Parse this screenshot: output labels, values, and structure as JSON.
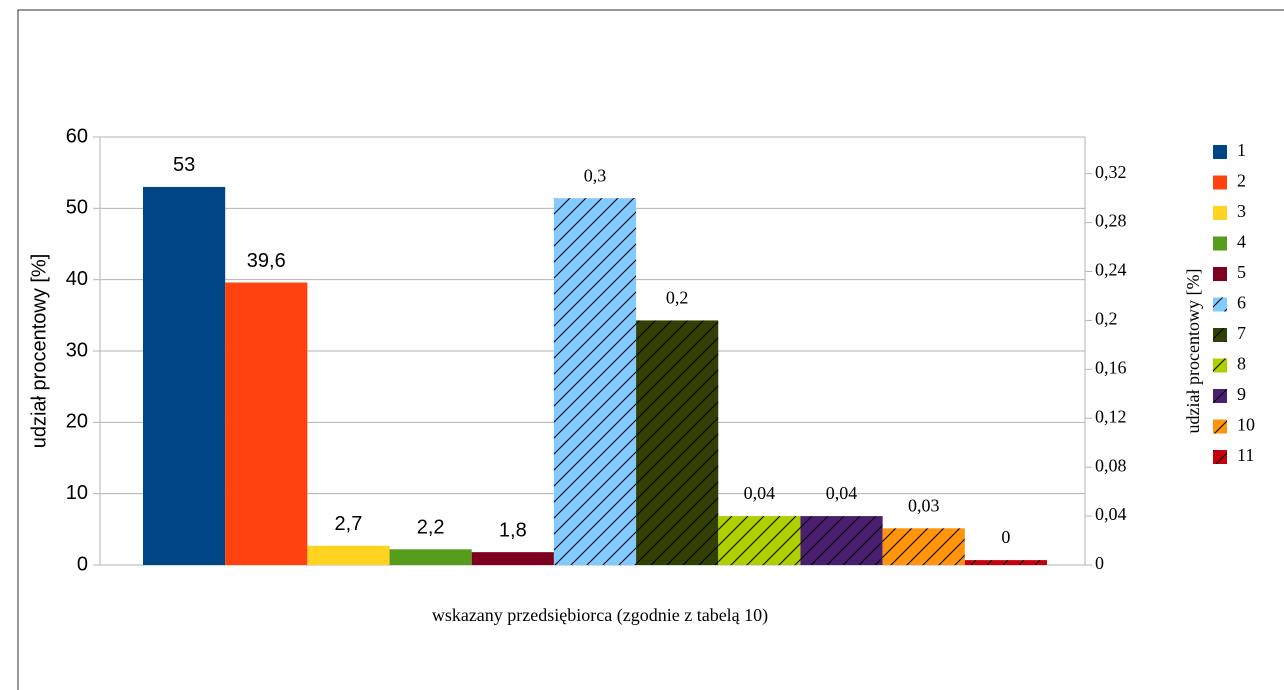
{
  "chart_data": {
    "type": "bar",
    "x_label": "wskazany przedsiębiorca (zgodnie z tabelą 10)",
    "y_label": "udział procentowy [%]",
    "y2_label": "udział procentowy [%]",
    "categories": [
      null
    ],
    "ylim": [
      0,
      60
    ],
    "yticks": [
      0,
      10,
      20,
      30,
      40,
      50,
      60
    ],
    "y2lim": [
      0,
      0.35
    ],
    "y2ticks": [
      0,
      {
        "value": 0.04,
        "label": "0,04"
      },
      {
        "value": 0.08,
        "label": "0,08"
      },
      {
        "value": 0.12,
        "label": "0,12"
      },
      {
        "value": 0.16,
        "label": "0,16"
      },
      {
        "value": 0.2,
        "label": "0,2"
      },
      {
        "value": 0.24,
        "label": "0,24"
      },
      {
        "value": 0.28,
        "label": "0,28"
      },
      {
        "value": 0.32,
        "label": "0,32"
      }
    ],
    "grid": true,
    "legend": "right",
    "series": [
      {
        "name": "1",
        "color": "#004586",
        "values": [
          53
        ]
      },
      {
        "name": "2",
        "color": "#ff420e",
        "values": [
          39.6
        ],
        "value_labels": [
          "39,6"
        ]
      },
      {
        "name": "3",
        "color": "#ffd320",
        "values": [
          2.7
        ],
        "value_labels": [
          "2,7"
        ]
      },
      {
        "name": "4",
        "color": "#579d1c",
        "values": [
          2.2
        ],
        "value_labels": [
          "2,2"
        ]
      },
      {
        "name": "5",
        "color": "#7e0021",
        "values": [
          1.8
        ],
        "value_labels": [
          "1,8"
        ]
      },
      {
        "name": "6",
        "color": "#83caff",
        "axis": "y2",
        "hatched": true,
        "values": [
          0.3
        ],
        "value_labels": [
          "0,3"
        ]
      },
      {
        "name": "7",
        "color": "#314004",
        "axis": "y2",
        "hatched": true,
        "values": [
          0.2
        ],
        "value_labels": [
          "0,2"
        ]
      },
      {
        "name": "8",
        "color": "#aecf00",
        "axis": "y2",
        "hatched": true,
        "values": [
          0.04
        ],
        "value_labels": [
          "0,04"
        ]
      },
      {
        "name": "9",
        "color": "#4b1f6f",
        "axis": "y2",
        "hatched": true,
        "values": [
          0.04
        ],
        "value_labels": [
          "0,04"
        ]
      },
      {
        "name": "10",
        "color": "#ff950e",
        "axis": "y2",
        "hatched": true,
        "values": [
          0.03
        ],
        "value_labels": [
          "0,03"
        ]
      },
      {
        "name": "11",
        "color": "#c5000b",
        "axis": "y2",
        "hatched": true,
        "values": [
          0.004
        ],
        "value_labels": [
          "0"
        ]
      }
    ]
  }
}
